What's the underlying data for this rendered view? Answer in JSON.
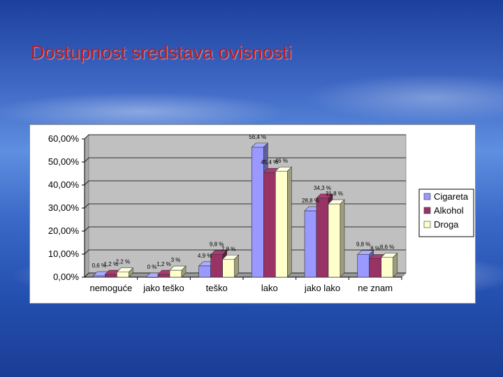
{
  "slide": {
    "title": "Dostupnost sredstava ovisnosti"
  },
  "chart_data": {
    "type": "bar",
    "categories": [
      "nemoguće",
      "jako teško",
      "teško",
      "lako",
      "jako lako",
      "ne znam"
    ],
    "series": [
      {
        "name": "Cigareta",
        "color": "#9999ff",
        "values": [
          0.6,
          0,
          4.9,
          56.4,
          28.8,
          9.8
        ]
      },
      {
        "name": "Alkohol",
        "color": "#993366",
        "values": [
          1.2,
          1.2,
          9.8,
          45.4,
          34.3,
          8
        ]
      },
      {
        "name": "Droga",
        "color": "#ffffcc",
        "values": [
          2.2,
          3,
          7.8,
          46,
          31.8,
          8.6
        ]
      }
    ],
    "data_labels": [
      [
        "0,6 %",
        "0 %",
        "4,9 %",
        "56,4 %",
        "28,8 %",
        "9,8 %"
      ],
      [
        "1,2 %",
        "1,2 %",
        "9,8 %",
        "45,4 %",
        "34,3 %",
        "8 %"
      ],
      [
        "2,2 %",
        "3 %",
        "7,8 %",
        "46 %",
        "31,8 %",
        "8,6 %"
      ]
    ],
    "y_ticks": [
      "0,00%",
      "10,00%",
      "20,00%",
      "30,00%",
      "40,00%",
      "50,00%",
      "60,00%"
    ],
    "ylim": [
      0,
      60
    ],
    "grid": true,
    "legend_position": "right",
    "title": "",
    "xlabel": "",
    "ylabel": ""
  }
}
